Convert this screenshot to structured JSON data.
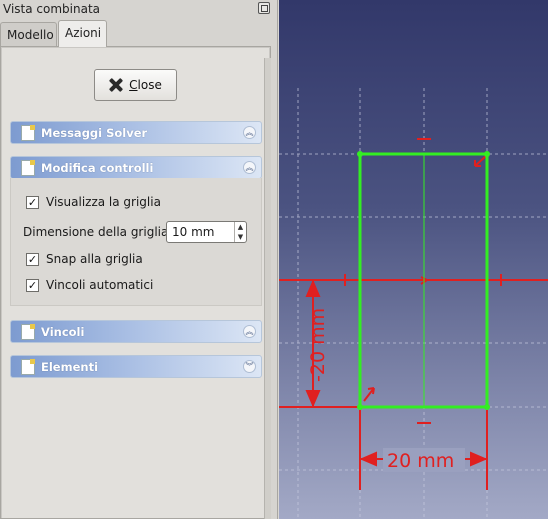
{
  "dock": {
    "title": "Vista combinata",
    "tabs": [
      {
        "label": "Modello"
      },
      {
        "label": "Azioni"
      }
    ]
  },
  "close_button": {
    "label_prefix": "C",
    "label_rest": "lose",
    "icon": "x-icon"
  },
  "sections": [
    {
      "title": "Messaggi Solver",
      "expanded": false
    },
    {
      "title": "Modifica controlli",
      "expanded": true
    },
    {
      "title": "Vincoli",
      "expanded": false
    },
    {
      "title": "Elementi",
      "expanded": false
    }
  ],
  "controls": {
    "show_grid": {
      "label": "Visualizza la griglia",
      "checked": true
    },
    "grid_size": {
      "label": "Dimensione della griglia:",
      "value": "10 mm"
    },
    "snap_grid": {
      "label": "Snap alla griglia",
      "checked": true
    },
    "auto_constraints": {
      "label": "Vincoli automatici",
      "checked": true
    }
  },
  "sketch": {
    "vertical_dimension": "-20 mm",
    "horizontal_dimension": "20 mm"
  },
  "colors": {
    "accent_blue": "#7d9bd0",
    "sketch_green": "#33ee22",
    "dimension_red": "#e02020"
  }
}
